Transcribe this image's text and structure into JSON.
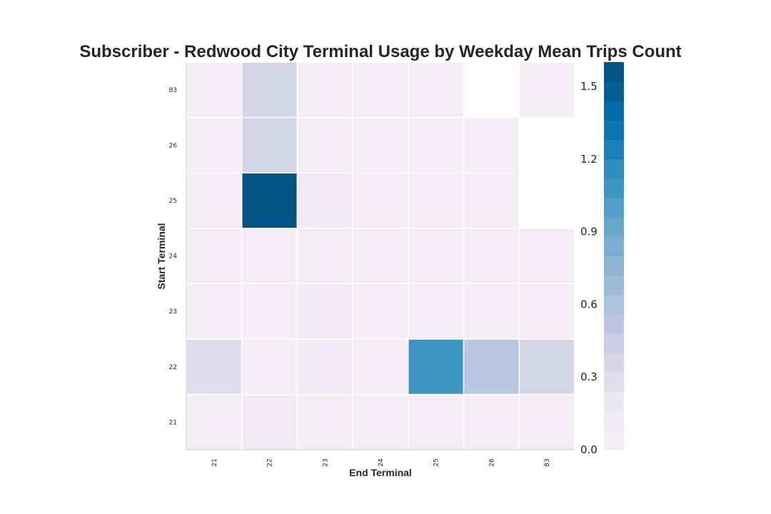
{
  "chart_data": {
    "type": "heatmap",
    "title": "Subscriber - Redwood City Terminal Usage by Weekday Mean Trips Count",
    "xlabel": "End Terminal",
    "ylabel": "Start Terminal",
    "x_categories": [
      "21",
      "22",
      "23",
      "24",
      "25",
      "26",
      "83"
    ],
    "y_categories": [
      "83",
      "26",
      "25",
      "24",
      "23",
      "22",
      "21"
    ],
    "values": [
      [
        0.02,
        0.35,
        0.02,
        0.02,
        0.02,
        null,
        0.02
      ],
      [
        0.02,
        0.35,
        0.02,
        0.02,
        0.02,
        0.02,
        null
      ],
      [
        0.02,
        1.55,
        0.15,
        0.02,
        0.08,
        0.02,
        null
      ],
      [
        0.02,
        0.02,
        0.02,
        0.02,
        0.02,
        0.02,
        0.02
      ],
      [
        0.02,
        0.08,
        0.1,
        0.02,
        0.02,
        0.02,
        0.02
      ],
      [
        0.3,
        0.02,
        0.15,
        0.08,
        1.05,
        0.5,
        0.35
      ],
      [
        0.02,
        0.15,
        0.02,
        0.02,
        0.02,
        0.02,
        0.02
      ]
    ],
    "colorbar": {
      "min": 0.0,
      "max": 1.6,
      "ticks": [
        "0.0",
        "0.3",
        "0.6",
        "0.9",
        "1.2",
        "1.5"
      ],
      "levels": 20,
      "colormap": "PuBu"
    },
    "grid": false,
    "legend": "colorbar-right"
  }
}
